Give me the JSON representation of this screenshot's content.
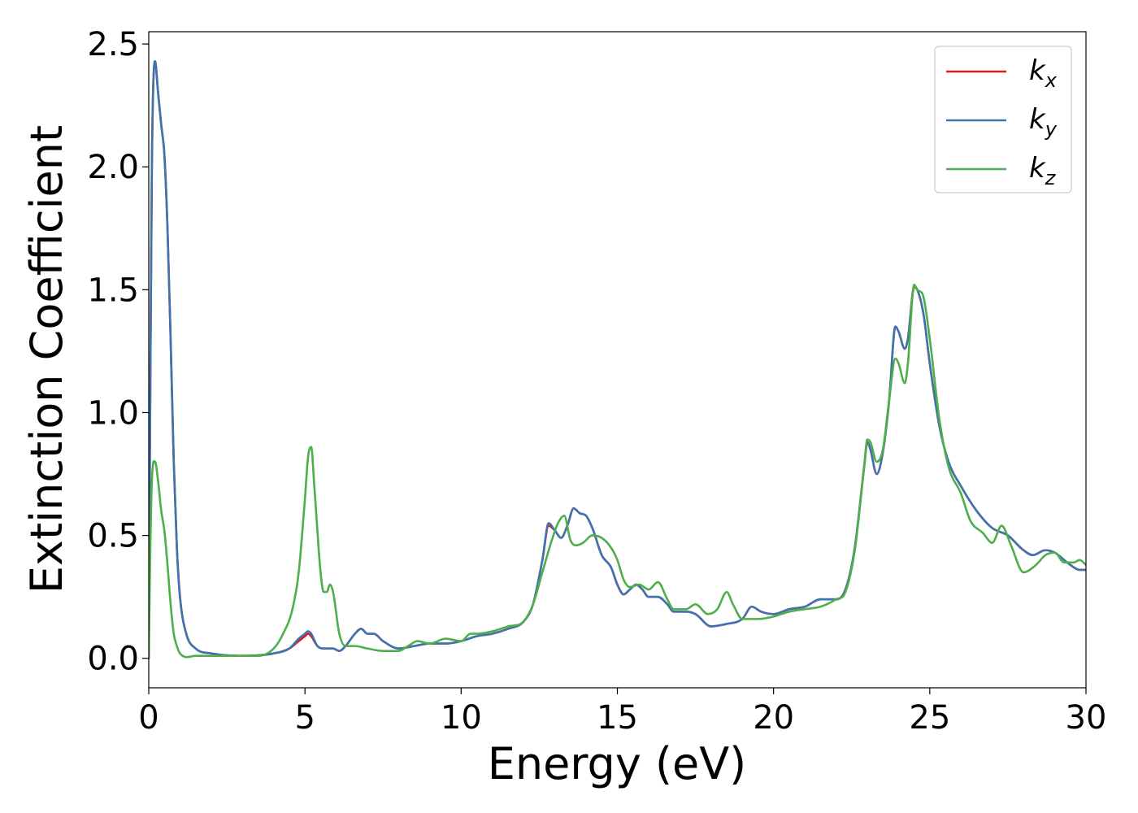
{
  "chart_data": {
    "type": "line",
    "title": "",
    "xlabel": "Energy (eV)",
    "ylabel": "Extinction Coefficient",
    "xlim": [
      0,
      30
    ],
    "ylim": [
      -0.12,
      2.55
    ],
    "xticks": [
      0,
      5,
      10,
      15,
      20,
      25,
      30
    ],
    "xtick_labels": [
      "0",
      "5",
      "10",
      "15",
      "20",
      "25",
      "30"
    ],
    "yticks": [
      0.0,
      0.5,
      1.0,
      1.5,
      2.0,
      2.5
    ],
    "ytick_labels": [
      "0.0",
      "0.5",
      "1.0",
      "1.5",
      "2.0",
      "2.5"
    ],
    "grid": false,
    "legend_position": "top-right",
    "series": [
      {
        "name": "k_x",
        "legend_base": "k",
        "legend_sub": "x",
        "color": "#e41a1c",
        "points": [
          [
            0,
            0.0
          ],
          [
            0.05,
            1.1
          ],
          [
            0.1,
            2.0
          ],
          [
            0.2,
            2.43
          ],
          [
            0.3,
            2.3
          ],
          [
            0.4,
            2.17
          ],
          [
            0.5,
            2.05
          ],
          [
            0.6,
            1.75
          ],
          [
            0.7,
            1.3
          ],
          [
            0.8,
            0.8
          ],
          [
            0.9,
            0.45
          ],
          [
            1.0,
            0.25
          ],
          [
            1.2,
            0.1
          ],
          [
            1.5,
            0.04
          ],
          [
            2.0,
            0.02
          ],
          [
            3.0,
            0.01
          ],
          [
            4.0,
            0.02
          ],
          [
            4.5,
            0.04
          ],
          [
            4.8,
            0.07
          ],
          [
            5.0,
            0.09
          ],
          [
            5.1,
            0.1
          ],
          [
            5.2,
            0.09
          ],
          [
            5.4,
            0.05
          ],
          [
            5.6,
            0.04
          ],
          [
            5.9,
            0.04
          ],
          [
            6.1,
            0.03
          ],
          [
            6.3,
            0.05
          ],
          [
            6.6,
            0.1
          ],
          [
            6.8,
            0.12
          ],
          [
            7.0,
            0.1
          ],
          [
            7.2,
            0.1
          ],
          [
            7.5,
            0.07
          ],
          [
            8.0,
            0.04
          ],
          [
            8.5,
            0.05
          ],
          [
            9.0,
            0.06
          ],
          [
            9.5,
            0.06
          ],
          [
            10.0,
            0.07
          ],
          [
            10.5,
            0.09
          ],
          [
            11.0,
            0.1
          ],
          [
            11.5,
            0.12
          ],
          [
            12.0,
            0.15
          ],
          [
            12.3,
            0.22
          ],
          [
            12.6,
            0.4
          ],
          [
            12.8,
            0.54
          ],
          [
            13.0,
            0.52
          ],
          [
            13.2,
            0.49
          ],
          [
            13.4,
            0.54
          ],
          [
            13.6,
            0.61
          ],
          [
            13.8,
            0.59
          ],
          [
            14.0,
            0.58
          ],
          [
            14.2,
            0.53
          ],
          [
            14.5,
            0.42
          ],
          [
            14.8,
            0.37
          ],
          [
            15.0,
            0.3
          ],
          [
            15.2,
            0.26
          ],
          [
            15.4,
            0.28
          ],
          [
            15.6,
            0.3
          ],
          [
            15.8,
            0.28
          ],
          [
            16.0,
            0.25
          ],
          [
            16.3,
            0.25
          ],
          [
            16.6,
            0.22
          ],
          [
            16.8,
            0.19
          ],
          [
            17.2,
            0.19
          ],
          [
            17.5,
            0.18
          ],
          [
            18.0,
            0.13
          ],
          [
            18.5,
            0.14
          ],
          [
            19.0,
            0.16
          ],
          [
            19.3,
            0.21
          ],
          [
            19.6,
            0.19
          ],
          [
            20.0,
            0.18
          ],
          [
            20.5,
            0.2
          ],
          [
            21.0,
            0.21
          ],
          [
            21.5,
            0.24
          ],
          [
            22.0,
            0.24
          ],
          [
            22.3,
            0.28
          ],
          [
            22.6,
            0.45
          ],
          [
            22.9,
            0.78
          ],
          [
            23.0,
            0.88
          ],
          [
            23.1,
            0.85
          ],
          [
            23.3,
            0.75
          ],
          [
            23.5,
            0.84
          ],
          [
            23.7,
            1.05
          ],
          [
            23.9,
            1.35
          ],
          [
            24.0,
            1.33
          ],
          [
            24.2,
            1.26
          ],
          [
            24.3,
            1.3
          ],
          [
            24.5,
            1.51
          ],
          [
            24.6,
            1.5
          ],
          [
            24.8,
            1.4
          ],
          [
            25.0,
            1.2
          ],
          [
            25.3,
            0.95
          ],
          [
            25.6,
            0.8
          ],
          [
            26.0,
            0.7
          ],
          [
            26.5,
            0.6
          ],
          [
            27.0,
            0.53
          ],
          [
            27.5,
            0.5
          ],
          [
            28.0,
            0.44
          ],
          [
            28.3,
            0.42
          ],
          [
            28.7,
            0.44
          ],
          [
            29.0,
            0.43
          ],
          [
            29.5,
            0.38
          ],
          [
            29.8,
            0.36
          ],
          [
            30.0,
            0.36
          ]
        ]
      },
      {
        "name": "k_y",
        "legend_base": "k",
        "legend_sub": "y",
        "color": "#3d73b0",
        "points": [
          [
            0,
            0.0
          ],
          [
            0.05,
            1.1
          ],
          [
            0.1,
            2.0
          ],
          [
            0.2,
            2.43
          ],
          [
            0.3,
            2.3
          ],
          [
            0.4,
            2.17
          ],
          [
            0.5,
            2.05
          ],
          [
            0.6,
            1.75
          ],
          [
            0.7,
            1.3
          ],
          [
            0.8,
            0.8
          ],
          [
            0.9,
            0.45
          ],
          [
            1.0,
            0.25
          ],
          [
            1.2,
            0.1
          ],
          [
            1.5,
            0.04
          ],
          [
            2.0,
            0.02
          ],
          [
            3.0,
            0.01
          ],
          [
            4.0,
            0.02
          ],
          [
            4.5,
            0.04
          ],
          [
            4.8,
            0.08
          ],
          [
            5.0,
            0.1
          ],
          [
            5.1,
            0.11
          ],
          [
            5.2,
            0.1
          ],
          [
            5.4,
            0.05
          ],
          [
            5.6,
            0.04
          ],
          [
            5.9,
            0.04
          ],
          [
            6.1,
            0.03
          ],
          [
            6.3,
            0.05
          ],
          [
            6.6,
            0.1
          ],
          [
            6.8,
            0.12
          ],
          [
            7.0,
            0.1
          ],
          [
            7.2,
            0.1
          ],
          [
            7.5,
            0.07
          ],
          [
            8.0,
            0.04
          ],
          [
            8.5,
            0.05
          ],
          [
            9.0,
            0.06
          ],
          [
            9.5,
            0.06
          ],
          [
            10.0,
            0.07
          ],
          [
            10.5,
            0.09
          ],
          [
            11.0,
            0.1
          ],
          [
            11.5,
            0.12
          ],
          [
            12.0,
            0.15
          ],
          [
            12.3,
            0.22
          ],
          [
            12.6,
            0.4
          ],
          [
            12.8,
            0.55
          ],
          [
            13.0,
            0.52
          ],
          [
            13.2,
            0.49
          ],
          [
            13.4,
            0.54
          ],
          [
            13.6,
            0.61
          ],
          [
            13.8,
            0.59
          ],
          [
            14.0,
            0.58
          ],
          [
            14.2,
            0.53
          ],
          [
            14.5,
            0.42
          ],
          [
            14.8,
            0.37
          ],
          [
            15.0,
            0.3
          ],
          [
            15.2,
            0.26
          ],
          [
            15.4,
            0.28
          ],
          [
            15.6,
            0.3
          ],
          [
            15.8,
            0.28
          ],
          [
            16.0,
            0.25
          ],
          [
            16.3,
            0.25
          ],
          [
            16.6,
            0.22
          ],
          [
            16.8,
            0.19
          ],
          [
            17.2,
            0.19
          ],
          [
            17.5,
            0.18
          ],
          [
            18.0,
            0.13
          ],
          [
            18.5,
            0.14
          ],
          [
            19.0,
            0.16
          ],
          [
            19.3,
            0.21
          ],
          [
            19.6,
            0.19
          ],
          [
            20.0,
            0.18
          ],
          [
            20.5,
            0.2
          ],
          [
            21.0,
            0.21
          ],
          [
            21.5,
            0.24
          ],
          [
            22.0,
            0.24
          ],
          [
            22.3,
            0.28
          ],
          [
            22.6,
            0.45
          ],
          [
            22.9,
            0.78
          ],
          [
            23.0,
            0.88
          ],
          [
            23.1,
            0.85
          ],
          [
            23.3,
            0.75
          ],
          [
            23.5,
            0.84
          ],
          [
            23.7,
            1.05
          ],
          [
            23.9,
            1.35
          ],
          [
            24.0,
            1.33
          ],
          [
            24.2,
            1.26
          ],
          [
            24.3,
            1.3
          ],
          [
            24.5,
            1.51
          ],
          [
            24.6,
            1.5
          ],
          [
            24.8,
            1.4
          ],
          [
            25.0,
            1.2
          ],
          [
            25.3,
            0.95
          ],
          [
            25.6,
            0.8
          ],
          [
            26.0,
            0.7
          ],
          [
            26.5,
            0.6
          ],
          [
            27.0,
            0.53
          ],
          [
            27.5,
            0.5
          ],
          [
            28.0,
            0.44
          ],
          [
            28.3,
            0.42
          ],
          [
            28.7,
            0.44
          ],
          [
            29.0,
            0.43
          ],
          [
            29.5,
            0.38
          ],
          [
            29.8,
            0.36
          ],
          [
            30.0,
            0.36
          ]
        ]
      },
      {
        "name": "k_z",
        "legend_base": "k",
        "legend_sub": "z",
        "color": "#4daf4a",
        "points": [
          [
            0,
            0.0
          ],
          [
            0.05,
            0.45
          ],
          [
            0.1,
            0.72
          ],
          [
            0.2,
            0.8
          ],
          [
            0.3,
            0.72
          ],
          [
            0.4,
            0.6
          ],
          [
            0.5,
            0.52
          ],
          [
            0.6,
            0.38
          ],
          [
            0.7,
            0.22
          ],
          [
            0.8,
            0.1
          ],
          [
            0.9,
            0.05
          ],
          [
            1.0,
            0.02
          ],
          [
            1.5,
            0.01
          ],
          [
            3.0,
            0.01
          ],
          [
            3.5,
            0.01
          ],
          [
            4.0,
            0.04
          ],
          [
            4.3,
            0.1
          ],
          [
            4.6,
            0.2
          ],
          [
            4.8,
            0.35
          ],
          [
            5.0,
            0.65
          ],
          [
            5.1,
            0.82
          ],
          [
            5.2,
            0.86
          ],
          [
            5.3,
            0.7
          ],
          [
            5.5,
            0.35
          ],
          [
            5.6,
            0.27
          ],
          [
            5.7,
            0.27
          ],
          [
            5.8,
            0.3
          ],
          [
            5.9,
            0.27
          ],
          [
            6.1,
            0.1
          ],
          [
            6.3,
            0.05
          ],
          [
            6.6,
            0.05
          ],
          [
            7.0,
            0.04
          ],
          [
            7.5,
            0.03
          ],
          [
            8.0,
            0.03
          ],
          [
            8.3,
            0.05
          ],
          [
            8.6,
            0.07
          ],
          [
            9.0,
            0.06
          ],
          [
            9.5,
            0.08
          ],
          [
            10.0,
            0.07
          ],
          [
            10.3,
            0.1
          ],
          [
            10.5,
            0.1
          ],
          [
            11.0,
            0.11
          ],
          [
            11.5,
            0.13
          ],
          [
            12.0,
            0.15
          ],
          [
            12.3,
            0.22
          ],
          [
            12.6,
            0.35
          ],
          [
            12.9,
            0.48
          ],
          [
            13.1,
            0.55
          ],
          [
            13.3,
            0.58
          ],
          [
            13.5,
            0.48
          ],
          [
            13.7,
            0.46
          ],
          [
            13.9,
            0.47
          ],
          [
            14.2,
            0.5
          ],
          [
            14.5,
            0.49
          ],
          [
            14.8,
            0.45
          ],
          [
            15.0,
            0.4
          ],
          [
            15.2,
            0.32
          ],
          [
            15.4,
            0.29
          ],
          [
            15.7,
            0.3
          ],
          [
            16.0,
            0.28
          ],
          [
            16.3,
            0.31
          ],
          [
            16.6,
            0.24
          ],
          [
            16.8,
            0.2
          ],
          [
            17.2,
            0.2
          ],
          [
            17.5,
            0.22
          ],
          [
            17.9,
            0.18
          ],
          [
            18.2,
            0.2
          ],
          [
            18.5,
            0.27
          ],
          [
            18.7,
            0.22
          ],
          [
            19.0,
            0.16
          ],
          [
            19.5,
            0.16
          ],
          [
            20.0,
            0.17
          ],
          [
            20.5,
            0.19
          ],
          [
            21.0,
            0.2
          ],
          [
            21.5,
            0.21
          ],
          [
            22.0,
            0.24
          ],
          [
            22.3,
            0.27
          ],
          [
            22.6,
            0.44
          ],
          [
            22.9,
            0.78
          ],
          [
            23.0,
            0.89
          ],
          [
            23.1,
            0.88
          ],
          [
            23.3,
            0.8
          ],
          [
            23.5,
            0.85
          ],
          [
            23.7,
            1.05
          ],
          [
            23.9,
            1.22
          ],
          [
            24.0,
            1.2
          ],
          [
            24.2,
            1.12
          ],
          [
            24.3,
            1.2
          ],
          [
            24.5,
            1.52
          ],
          [
            24.6,
            1.5
          ],
          [
            24.8,
            1.47
          ],
          [
            25.0,
            1.3
          ],
          [
            25.3,
            0.98
          ],
          [
            25.6,
            0.78
          ],
          [
            26.0,
            0.67
          ],
          [
            26.3,
            0.56
          ],
          [
            26.7,
            0.51
          ],
          [
            27.0,
            0.47
          ],
          [
            27.3,
            0.54
          ],
          [
            27.6,
            0.46
          ],
          [
            28.0,
            0.35
          ],
          [
            28.4,
            0.38
          ],
          [
            28.7,
            0.42
          ],
          [
            29.0,
            0.43
          ],
          [
            29.3,
            0.39
          ],
          [
            29.6,
            0.39
          ],
          [
            29.8,
            0.4
          ],
          [
            30.0,
            0.38
          ]
        ]
      }
    ]
  }
}
